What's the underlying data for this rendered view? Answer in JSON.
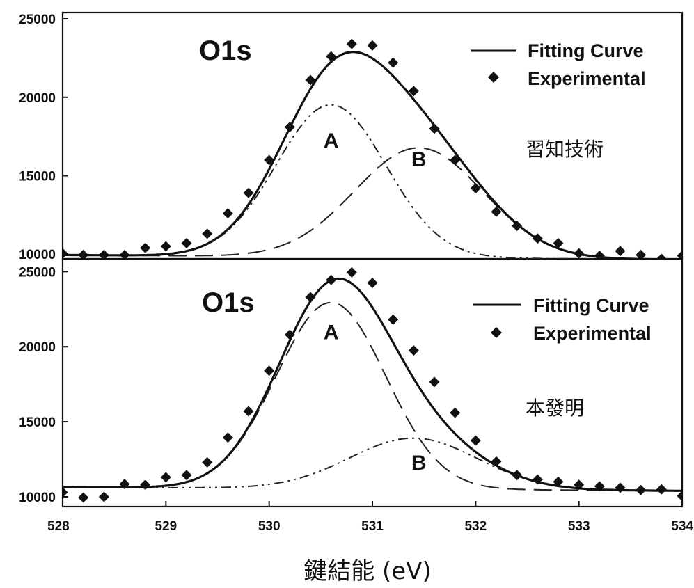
{
  "chart_data": [
    {
      "type": "line",
      "panel": "top",
      "title": "O1s",
      "annotation": "習知技術",
      "xlabel": "",
      "ylabel": "",
      "xlim": [
        528,
        534
      ],
      "ylim": [
        9700,
        25400
      ],
      "yticks": [
        "10000",
        "15000",
        "20000",
        "25000"
      ],
      "legend": {
        "position": "top-right",
        "entries": [
          "Fitting Curve",
          "Experimental"
        ]
      },
      "grid": false,
      "peaks": [
        {
          "name": "A",
          "center": 530.6,
          "height": 9700,
          "sigma": 0.53,
          "style": "dash-dot-dot",
          "label_x": 530.6,
          "label_y": 16800
        },
        {
          "name": "B",
          "center": 531.45,
          "height": 7000,
          "sigma": 0.62,
          "style": "dash",
          "label_x": 531.45,
          "label_y": 15600
        }
      ],
      "baseline_start": 9950,
      "baseline_end": 9650,
      "experimental": {
        "x": [
          528.0,
          528.2,
          528.4,
          528.6,
          528.8,
          529.0,
          529.2,
          529.4,
          529.6,
          529.8,
          530.0,
          530.2,
          530.4,
          530.6,
          530.8,
          531.0,
          531.2,
          531.4,
          531.6,
          531.8,
          532.0,
          532.2,
          532.4,
          532.6,
          532.8,
          533.0,
          533.2,
          533.4,
          533.6,
          533.8,
          534.0
        ],
        "y": [
          10050,
          9950,
          9950,
          9950,
          10400,
          10500,
          10700,
          11300,
          12600,
          13900,
          16000,
          18100,
          21100,
          22600,
          23400,
          23300,
          22200,
          20400,
          18000,
          16000,
          14200,
          12700,
          11800,
          11000,
          10700,
          10050,
          9900,
          10200,
          9950,
          9700,
          9900
        ]
      }
    },
    {
      "type": "line",
      "panel": "bottom",
      "title": "O1s",
      "annotation": "本發明",
      "xlabel": "鍵結能 (eV)",
      "ylabel": "",
      "xlim": [
        528,
        534
      ],
      "ylim": [
        9350,
        25850
      ],
      "xticks": [
        "528",
        "529",
        "530",
        "531",
        "532",
        "533",
        "534"
      ],
      "yticks": [
        "10000",
        "15000",
        "20000",
        "25000"
      ],
      "legend": {
        "position": "top-right",
        "entries": [
          "Fitting Curve",
          "Experimental"
        ]
      },
      "grid": false,
      "peaks": [
        {
          "name": "A",
          "center": 530.6,
          "height": 12400,
          "sigma": 0.53,
          "style": "dash",
          "label_x": 530.6,
          "label_y": 20500
        },
        {
          "name": "B",
          "center": 531.4,
          "height": 3400,
          "sigma": 0.62,
          "style": "dash-dot-dot",
          "label_x": 531.45,
          "label_y": 11800
        }
      ],
      "baseline_start": 10650,
      "baseline_end": 10400,
      "experimental": {
        "x": [
          528.0,
          528.2,
          528.4,
          528.6,
          528.8,
          529.0,
          529.2,
          529.4,
          529.6,
          529.8,
          530.0,
          530.2,
          530.4,
          530.6,
          530.8,
          531.0,
          531.2,
          531.4,
          531.6,
          531.8,
          532.0,
          532.2,
          532.4,
          532.6,
          532.8,
          533.0,
          533.2,
          533.4,
          533.6,
          533.8,
          534.0
        ],
        "y": [
          10300,
          9950,
          10000,
          10850,
          10800,
          11300,
          11450,
          12300,
          13950,
          15700,
          18400,
          20800,
          23300,
          24450,
          24950,
          24250,
          21800,
          19750,
          17650,
          15600,
          13750,
          12350,
          11450,
          11150,
          11000,
          10800,
          10700,
          10600,
          10450,
          10500,
          10050
        ]
      }
    }
  ]
}
